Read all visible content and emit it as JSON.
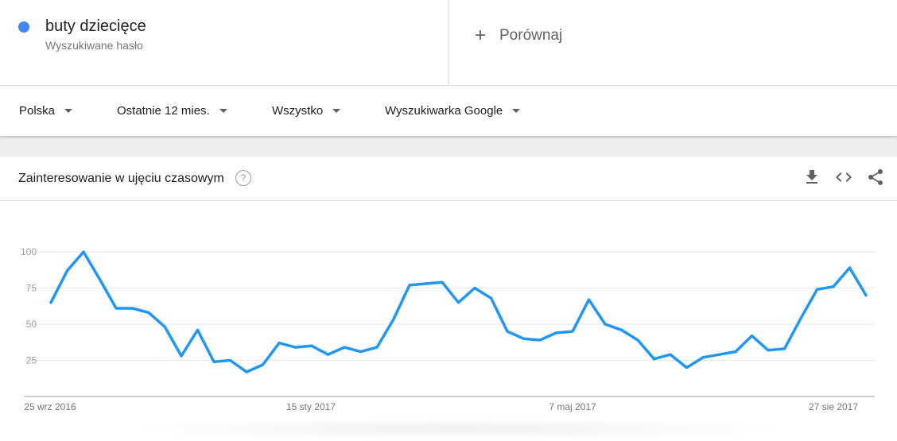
{
  "search_term": {
    "name": "buty dziecięce",
    "type": "Wyszukiwane hasło",
    "color": "#4285f4"
  },
  "compare": {
    "icon": "plus-icon",
    "label": "Porównaj"
  },
  "filters": [
    {
      "label": "Polska"
    },
    {
      "label": "Ostatnie 12 mies."
    },
    {
      "label": "Wszystko"
    },
    {
      "label": "Wyszukiwarka Google"
    }
  ],
  "section": {
    "title": "Zainteresowanie w ujęciu czasowym",
    "help_icon": "question-icon",
    "actions": [
      "download-icon",
      "embed-code-icon",
      "share-icon"
    ]
  },
  "chart_data": {
    "type": "line",
    "x_tick_labels": [
      "25 wrz 2016",
      "15 sty 2017",
      "7 maj 2017",
      "27 sie 2017"
    ],
    "y_ticks": [
      100,
      75,
      50,
      25
    ],
    "ylim": [
      0,
      100
    ],
    "grid": true,
    "series": [
      {
        "color": "#2196f3",
        "values": [
          65,
          87,
          100,
          81,
          61,
          61,
          58,
          48,
          28,
          46,
          24,
          25,
          17,
          22,
          37,
          34,
          35,
          29,
          34,
          31,
          34,
          53,
          77,
          78,
          79,
          65,
          75,
          68,
          45,
          40,
          39,
          44,
          45,
          67,
          50,
          46,
          39,
          26,
          29,
          20,
          27,
          29,
          31,
          42,
          32,
          33,
          54,
          74,
          76,
          89,
          70
        ]
      }
    ]
  }
}
